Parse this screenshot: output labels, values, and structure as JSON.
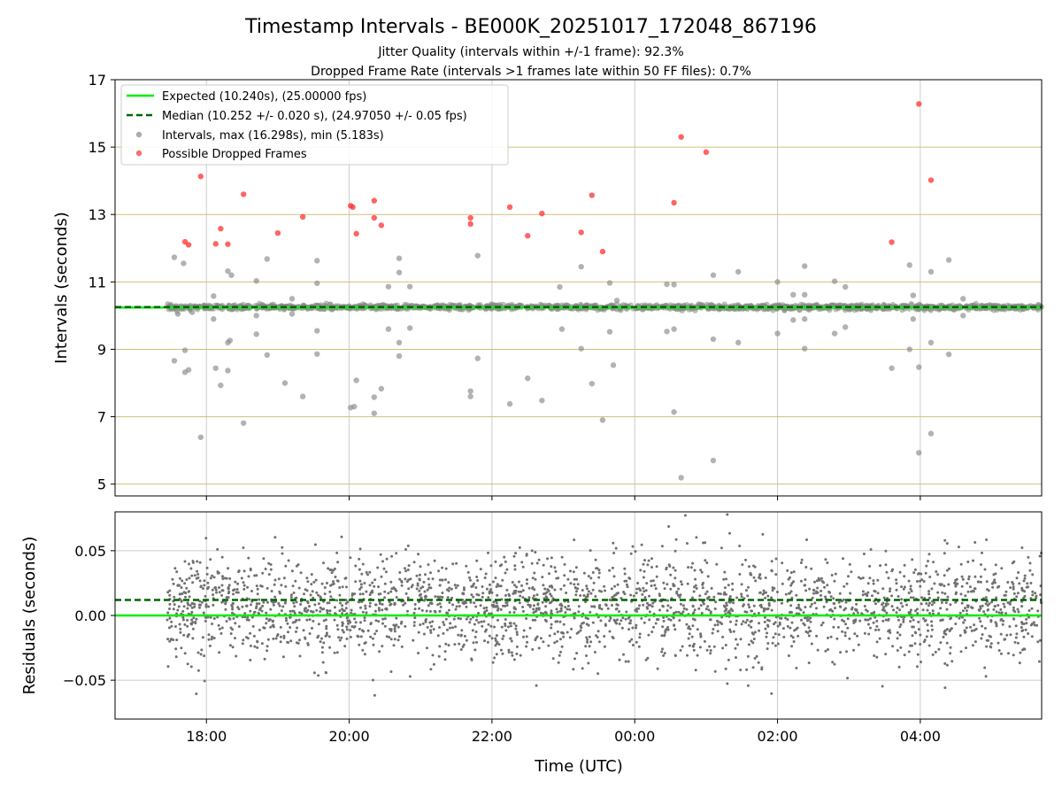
{
  "chart_data": [
    {
      "type": "scatter",
      "title": "Timestamp Intervals - BE000K_20251017_172048_867196",
      "subtitle_1": "Jitter Quality (intervals within +/-1 frame): 92.3%",
      "subtitle_2": "Dropped Frame Rate (intervals >1 frames late within 50 FF files): 0.7%",
      "ylabel": "Intervals (seconds)",
      "xlabel": "",
      "xlim_hours": [
        16.72,
        29.7
      ],
      "ylim": [
        4.65,
        17.0
      ],
      "yticks": [
        "5",
        "7",
        "9",
        "11",
        "13",
        "15",
        "17"
      ],
      "ytick_values": [
        5,
        7,
        9,
        11,
        13,
        15,
        17
      ],
      "hlines_gridlines": [
        5,
        7,
        9,
        11,
        13,
        15
      ],
      "expected_interval": 10.24,
      "median_interval": 10.252,
      "legend": {
        "placement": "top-left",
        "expected": "Expected (10.240s), (25.00000 fps)",
        "median": "Median (10.252 +/- 0.020 s), (24.97050 +/- 0.05 fps)",
        "intervals": "Intervals, max (16.298s), min (5.183s)",
        "dropped": "Possible Dropped Frames"
      },
      "main_band": {
        "x_start": 17.45,
        "x_end": 29.7,
        "y_center": 10.25,
        "note": "dense band of intervals near median"
      },
      "intervals_outliers": [
        [
          17.55,
          11.73
        ],
        [
          17.55,
          8.66
        ],
        [
          17.6,
          10.05
        ],
        [
          17.65,
          10.2
        ],
        [
          17.68,
          11.55
        ],
        [
          17.7,
          8.97
        ],
        [
          17.7,
          8.32
        ],
        [
          17.75,
          8.39
        ],
        [
          17.8,
          10.1
        ],
        [
          17.92,
          6.39
        ],
        [
          18.1,
          10.58
        ],
        [
          18.1,
          9.9
        ],
        [
          18.13,
          8.44
        ],
        [
          18.2,
          7.93
        ],
        [
          18.3,
          11.32
        ],
        [
          18.3,
          9.2
        ],
        [
          18.33,
          9.26
        ],
        [
          18.3,
          8.37
        ],
        [
          18.35,
          11.2
        ],
        [
          18.52,
          6.81
        ],
        [
          18.7,
          11.03
        ],
        [
          18.7,
          10.0
        ],
        [
          18.7,
          9.45
        ],
        [
          18.85,
          11.68
        ],
        [
          18.85,
          8.83
        ],
        [
          19.1,
          8.0
        ],
        [
          19.2,
          10.5
        ],
        [
          19.2,
          10.05
        ],
        [
          19.35,
          7.6
        ],
        [
          19.55,
          11.63
        ],
        [
          19.55,
          10.96
        ],
        [
          19.55,
          9.55
        ],
        [
          19.55,
          8.86
        ],
        [
          20.02,
          7.27
        ],
        [
          20.07,
          7.3
        ],
        [
          20.1,
          8.08
        ],
        [
          20.35,
          7.58
        ],
        [
          20.35,
          7.1
        ],
        [
          20.45,
          7.83
        ],
        [
          20.55,
          10.86
        ],
        [
          20.55,
          9.6
        ],
        [
          20.7,
          11.7
        ],
        [
          20.7,
          11.28
        ],
        [
          20.7,
          9.2
        ],
        [
          20.7,
          8.8
        ],
        [
          20.85,
          10.86
        ],
        [
          20.85,
          9.63
        ],
        [
          21.7,
          7.76
        ],
        [
          21.7,
          7.6
        ],
        [
          21.8,
          11.78
        ],
        [
          21.8,
          8.73
        ],
        [
          22.25,
          7.38
        ],
        [
          22.5,
          8.14
        ],
        [
          22.7,
          7.48
        ],
        [
          22.8,
          10.3
        ],
        [
          22.95,
          10.85
        ],
        [
          22.98,
          9.6
        ],
        [
          23.25,
          11.45
        ],
        [
          23.25,
          9.02
        ],
        [
          23.4,
          7.98
        ],
        [
          23.55,
          6.9
        ],
        [
          23.65,
          10.97
        ],
        [
          23.65,
          9.52
        ],
        [
          23.7,
          8.53
        ],
        [
          23.75,
          10.45
        ],
        [
          24.45,
          10.93
        ],
        [
          24.45,
          9.53
        ],
        [
          24.55,
          10.92
        ],
        [
          24.55,
          9.6
        ],
        [
          24.55,
          7.14
        ],
        [
          24.65,
          5.19
        ],
        [
          25.1,
          11.2
        ],
        [
          25.1,
          9.3
        ],
        [
          25.1,
          5.7
        ],
        [
          25.45,
          11.3
        ],
        [
          25.45,
          9.2
        ],
        [
          26.0,
          11.0
        ],
        [
          26.0,
          9.47
        ],
        [
          26.22,
          10.62
        ],
        [
          26.22,
          9.87
        ],
        [
          26.38,
          11.47
        ],
        [
          26.38,
          10.62
        ],
        [
          26.38,
          9.9
        ],
        [
          26.38,
          9.02
        ],
        [
          26.8,
          11.02
        ],
        [
          26.8,
          9.47
        ],
        [
          26.95,
          10.85
        ],
        [
          26.95,
          9.66
        ],
        [
          27.6,
          8.44
        ],
        [
          27.85,
          11.5
        ],
        [
          27.85,
          9.0
        ],
        [
          27.9,
          10.6
        ],
        [
          27.9,
          9.9
        ],
        [
          27.98,
          8.47
        ],
        [
          27.98,
          5.93
        ],
        [
          28.15,
          11.3
        ],
        [
          28.15,
          9.2
        ],
        [
          28.15,
          6.5
        ],
        [
          28.4,
          11.65
        ],
        [
          28.4,
          8.85
        ],
        [
          28.6,
          10.5
        ],
        [
          28.6,
          10.0
        ]
      ],
      "dropped_frames": [
        [
          17.7,
          12.19
        ],
        [
          17.75,
          12.1
        ],
        [
          17.92,
          14.13
        ],
        [
          18.13,
          12.13
        ],
        [
          18.2,
          12.58
        ],
        [
          18.3,
          12.12
        ],
        [
          18.52,
          13.6
        ],
        [
          19.0,
          12.45
        ],
        [
          19.35,
          12.93
        ],
        [
          20.02,
          13.26
        ],
        [
          20.05,
          13.22
        ],
        [
          20.1,
          12.43
        ],
        [
          20.35,
          13.41
        ],
        [
          20.35,
          12.9
        ],
        [
          20.45,
          12.68
        ],
        [
          21.7,
          12.9
        ],
        [
          21.7,
          12.72
        ],
        [
          22.25,
          13.22
        ],
        [
          22.5,
          12.37
        ],
        [
          22.7,
          13.03
        ],
        [
          23.25,
          12.47
        ],
        [
          23.4,
          13.57
        ],
        [
          23.55,
          11.9
        ],
        [
          24.55,
          13.35
        ],
        [
          24.65,
          15.3
        ],
        [
          25.0,
          14.85
        ],
        [
          27.6,
          12.18
        ],
        [
          27.98,
          16.28
        ],
        [
          28.15,
          14.02
        ]
      ]
    },
    {
      "type": "scatter",
      "ylabel": "Residuals (seconds)",
      "xlabel": "Time (UTC)",
      "xlim_hours": [
        16.72,
        29.7
      ],
      "ylim": [
        -0.08,
        0.08
      ],
      "yticks": [
        "0.05",
        "0.00",
        "−0.05"
      ],
      "ytick_values": [
        0.05,
        0.0,
        -0.05
      ],
      "xticks": [
        "18:00",
        "20:00",
        "22:00",
        "00:00",
        "02:00",
        "04:00"
      ],
      "xtick_hours": [
        18,
        20,
        22,
        24,
        26,
        28
      ],
      "expected_residual": 0.0,
      "median_residual": 0.012,
      "residual_spread_std": 0.02,
      "n_points": 2600,
      "x_start": 17.45,
      "x_end": 29.7
    }
  ],
  "colors": {
    "expected_line": "#00ee00",
    "median_line": "#006400",
    "interval_point": "#888888",
    "dropped_point": "#ff3030",
    "residual_point": "#707070",
    "hgrid": "#d4be7a",
    "vgrid": "#cccccc"
  }
}
